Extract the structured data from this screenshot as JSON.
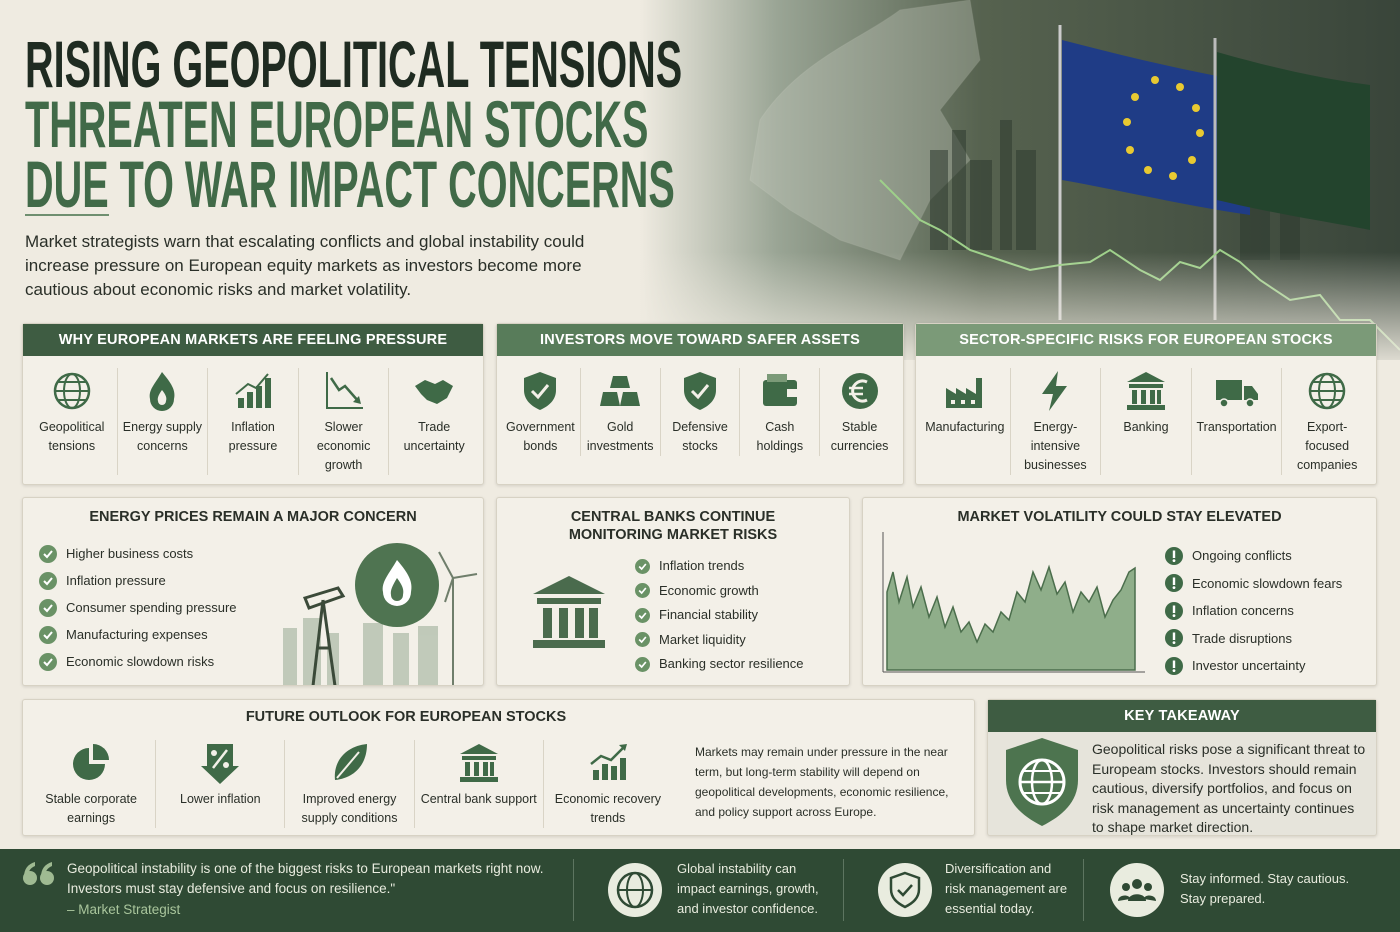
{
  "header": {
    "title": [
      "RISING GEOPOLITICAL TENSIONS",
      "THREATEN EUROPEAN STOCKS",
      "DUE TO WAR IMPACT CONCERNS"
    ],
    "intro": "Market strategists warn that escalating conflicts and global instability could increase pressure on European equity markets as investors become more cautious about economic risks and market volatility."
  },
  "pressure": {
    "title": "WHY EUROPEAN MARKETS ARE FEELING PRESSURE",
    "items": [
      "Geopolitical tensions",
      "Energy supply concerns",
      "Inflation pressure",
      "Slower economic growth",
      "Trade uncertainty"
    ]
  },
  "safe_assets": {
    "title": "INVESTORS MOVE TOWARD SAFER ASSETS",
    "items": [
      "Government bonds",
      "Gold investments",
      "Defensive stocks",
      "Cash holdings",
      "Stable currencies"
    ]
  },
  "sector_risks": {
    "title": "SECTOR-SPECIFIC RISKS FOR EUROPEAN STOCKS",
    "items": [
      "Manufacturing",
      "Energy-intensive businesses",
      "Banking",
      "Transportation",
      "Export-focused companies"
    ]
  },
  "energy": {
    "title": "ENERGY PRICES REMAIN A MAJOR CONCERN",
    "items": [
      "Higher business costs",
      "Inflation pressure",
      "Consumer spending pressure",
      "Manufacturing expenses",
      "Economic slowdown risks"
    ]
  },
  "central_banks": {
    "title": "CENTRAL BANKS CONTINUE MONITORING MARKET RISKS",
    "items": [
      "Inflation trends",
      "Economic growth",
      "Financial stability",
      "Market liquidity",
      "Banking sector resilience"
    ]
  },
  "volatility": {
    "title": "MARKET VOLATILITY COULD STAY ELEVATED",
    "items": [
      "Ongoing conflicts",
      "Economic slowdown fears",
      "Inflation concerns",
      "Trade disruptions",
      "Investor uncertainty"
    ]
  },
  "outlook": {
    "title": "FUTURE OUTLOOK FOR EUROPEAN STOCKS",
    "items": [
      "Stable corporate earnings",
      "Lower inflation",
      "Improved energy supply conditions",
      "Central bank support",
      "Economic recovery trends"
    ],
    "note": "Markets may remain under pressure in the near term, but long-term stability will depend on geopolitical developments, economic resilience, and policy support across Europe."
  },
  "takeaway": {
    "title": "KEY TAKEAWAY",
    "text": "Geopolitical risks pose a significant threat to Europeam stocks. Investors should remain cautious, diversify portfolios, and focus on risk management as uncertainty continues to shape market direction."
  },
  "footer": {
    "quote": "Geopolitical instability is one of the biggest risks to European markets right now. Investors must stay defensive and focus on resilience.\"",
    "attribution": "– Market Strategist",
    "points": [
      "Global instability can impact earnings, growth, and investor confidence.",
      "Diversification and risk management are essential today.",
      "Stay informed. Stay cautious. Stay prepared."
    ]
  }
}
